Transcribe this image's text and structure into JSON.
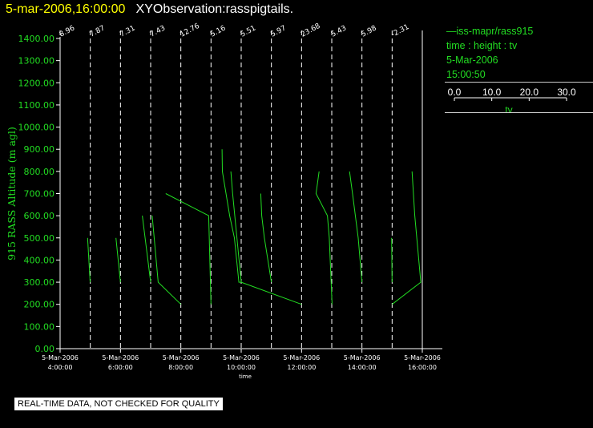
{
  "header": {
    "datetime": "5-mar-2006,16:00:00",
    "title": "XYObservation:rasspigtails."
  },
  "legend": {
    "lines": [
      "—iss-mapr/rass915",
      "time : height : tv",
      "5-Mar-2006",
      "15:00:50"
    ],
    "scale_ticks": [
      "0.0",
      "10.0",
      "20.0",
      "30.0"
    ],
    "scale_label": "tv"
  },
  "disclaimer": "REAL-TIME DATA, NOT CHECKED FOR QUALITY",
  "colors": {
    "trace": "#22dd22",
    "grid": "#ffffff",
    "title_date": "#ffff00",
    "axis_label": "#22dd22"
  },
  "chart_data": {
    "type": "line",
    "ylabel": "915 RASS Altitude (m agl)",
    "xlabel": "time",
    "ylim": [
      0,
      1400
    ],
    "yticks": [
      "0.00",
      "100.00",
      "200.00",
      "300.00",
      "400.00",
      "500.00",
      "600.00",
      "700.00",
      "800.00",
      "900.00",
      "1000.00",
      "1100.00",
      "1200.00",
      "1300.00",
      "1400.00"
    ],
    "xlim_hours": [
      4.0,
      16.0
    ],
    "xticks": [
      {
        "hour": 4,
        "date": "5-Mar-2006",
        "time": "4:00:00"
      },
      {
        "hour": 6,
        "date": "5-Mar-2006",
        "time": "6:00:00"
      },
      {
        "hour": 8,
        "date": "5-Mar-2006",
        "time": "8:00:00"
      },
      {
        "hour": 10,
        "date": "5-Mar-2006",
        "time": "10:00:00"
      },
      {
        "hour": 12,
        "date": "5-Mar-2006",
        "time": "12:00:00"
      },
      {
        "hour": 14,
        "date": "5-Mar-2006",
        "time": "14:00:00"
      },
      {
        "hour": 16,
        "date": "5-Mar-2006",
        "time": "16:00:00"
      }
    ],
    "profiles": [
      {
        "hour": 4.0,
        "label": "8.96"
      },
      {
        "hour": 5.0,
        "label": "7.87"
      },
      {
        "hour": 6.0,
        "label": "7.31"
      },
      {
        "hour": 7.0,
        "label": "7.43"
      },
      {
        "hour": 8.0,
        "label": "12.76"
      },
      {
        "hour": 9.0,
        "label": "5.16"
      },
      {
        "hour": 10.0,
        "label": "5.51"
      },
      {
        "hour": 11.0,
        "label": "5.97"
      },
      {
        "hour": 12.0,
        "label": "23.68"
      },
      {
        "hour": 13.0,
        "label": "5.43"
      },
      {
        "hour": 14.0,
        "label": "5.98"
      },
      {
        "hour": 15.0,
        "label": "-2.31"
      },
      {
        "hour": 16.0,
        "label": ""
      }
    ],
    "trace_scale": {
      "tv_per_hour": 30
    },
    "traces": [
      {
        "hour": 5.0,
        "points": [
          [
            -2.7,
            500
          ],
          [
            -0.1,
            300
          ]
        ]
      },
      {
        "hour": 6.0,
        "points": [
          [
            -4.5,
            500
          ],
          [
            0.0,
            300
          ]
        ]
      },
      {
        "hour": 7.0,
        "points": [
          [
            -8.3,
            600
          ],
          [
            0.0,
            300
          ]
        ]
      },
      {
        "hour": 8.0,
        "points": [
          [
            -28.5,
            600
          ],
          [
            -22.5,
            300
          ],
          [
            0.0,
            200
          ]
        ]
      },
      {
        "hour": 9.0,
        "points": [
          [
            -45.0,
            700
          ],
          [
            -2.3,
            600
          ],
          [
            0.0,
            200
          ]
        ]
      },
      {
        "hour": 10.0,
        "points": [
          [
            -19.0,
            900
          ],
          [
            -18.7,
            800
          ],
          [
            -11.5,
            600
          ],
          [
            -6.8,
            500
          ],
          [
            -2.3,
            300
          ],
          [
            0.0,
            300
          ]
        ]
      },
      {
        "hour": 10.0,
        "points": [
          [
            -10.3,
            800
          ],
          [
            -8.5,
            700
          ],
          [
            0.0,
            300
          ]
        ]
      },
      {
        "hour": 11.0,
        "points": [
          [
            -10.6,
            700
          ],
          [
            -9.6,
            600
          ],
          [
            -7.0,
            500
          ],
          [
            0.0,
            300
          ]
        ]
      },
      {
        "hour": 12.0,
        "points": [
          [
            -60.0,
            300
          ],
          [
            0.0,
            200
          ]
        ]
      },
      {
        "hour": 13.0,
        "points": [
          [
            -12.6,
            800
          ],
          [
            -15.6,
            700
          ],
          [
            -4.3,
            600
          ],
          [
            -2.5,
            500
          ],
          [
            0.3,
            200
          ]
        ]
      },
      {
        "hour": 14.0,
        "points": [
          [
            -12.3,
            800
          ],
          [
            -9.4,
            700
          ],
          [
            -3.7,
            500
          ],
          [
            0.0,
            300
          ]
        ]
      },
      {
        "hour": 15.0,
        "points": [
          [
            -0.5,
            500
          ],
          [
            0.0,
            300
          ]
        ]
      },
      {
        "hour": 16.0,
        "points": [
          [
            -10.2,
            800
          ],
          [
            -7.5,
            600
          ],
          [
            -1.5,
            300
          ],
          [
            -30.0,
            200
          ]
        ]
      }
    ]
  }
}
